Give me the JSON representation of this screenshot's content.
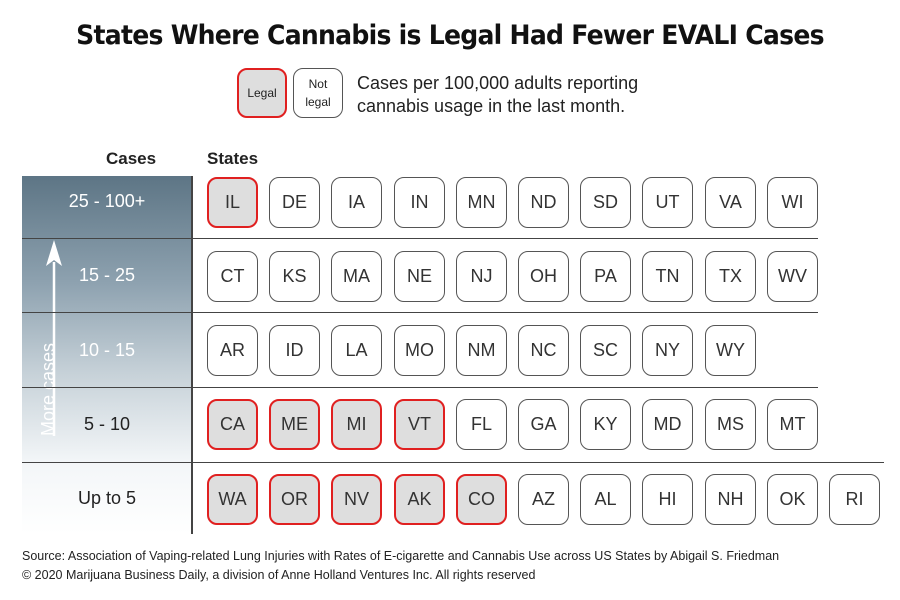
{
  "title": "States Where Cannabis is Legal Had Fewer EVALI Cases",
  "legend": {
    "legal": "Legal",
    "not_legal_1": "Not",
    "not_legal_2": "legal",
    "description_1": "Cases per 100,000 adults reporting",
    "description_2": "cannabis usage in the last month."
  },
  "column_headers": {
    "cases": "Cases",
    "states": "States"
  },
  "axis_label": "More cases",
  "colors": {
    "legal_border": "#e02020",
    "legal_fill": "#dedede",
    "gradient_top": "#5d7585"
  },
  "chart_data": {
    "type": "table",
    "title": "States Where Cannabis is Legal Had Fewer EVALI Cases",
    "rows": [
      {
        "range": "25 - 100+",
        "states": [
          {
            "code": "IL",
            "legal": true
          },
          {
            "code": "DE",
            "legal": false
          },
          {
            "code": "IA",
            "legal": false
          },
          {
            "code": "IN",
            "legal": false
          },
          {
            "code": "MN",
            "legal": false
          },
          {
            "code": "ND",
            "legal": false
          },
          {
            "code": "SD",
            "legal": false
          },
          {
            "code": "UT",
            "legal": false
          },
          {
            "code": "VA",
            "legal": false
          },
          {
            "code": "WI",
            "legal": false
          }
        ]
      },
      {
        "range": "15 - 25",
        "states": [
          {
            "code": "CT",
            "legal": false
          },
          {
            "code": "KS",
            "legal": false
          },
          {
            "code": "MA",
            "legal": false
          },
          {
            "code": "NE",
            "legal": false
          },
          {
            "code": "NJ",
            "legal": false
          },
          {
            "code": "OH",
            "legal": false
          },
          {
            "code": "PA",
            "legal": false
          },
          {
            "code": "TN",
            "legal": false
          },
          {
            "code": "TX",
            "legal": false
          },
          {
            "code": "WV",
            "legal": false
          }
        ]
      },
      {
        "range": "10 - 15",
        "states": [
          {
            "code": "AR",
            "legal": false
          },
          {
            "code": "ID",
            "legal": false
          },
          {
            "code": "LA",
            "legal": false
          },
          {
            "code": "MO",
            "legal": false
          },
          {
            "code": "NM",
            "legal": false
          },
          {
            "code": "NC",
            "legal": false
          },
          {
            "code": "SC",
            "legal": false
          },
          {
            "code": "NY",
            "legal": false
          },
          {
            "code": "WY",
            "legal": false
          }
        ]
      },
      {
        "range": "5 - 10",
        "states": [
          {
            "code": "CA",
            "legal": true
          },
          {
            "code": "ME",
            "legal": true
          },
          {
            "code": "MI",
            "legal": true
          },
          {
            "code": "VT",
            "legal": true
          },
          {
            "code": "FL",
            "legal": false
          },
          {
            "code": "GA",
            "legal": false
          },
          {
            "code": "KY",
            "legal": false
          },
          {
            "code": "MD",
            "legal": false
          },
          {
            "code": "MS",
            "legal": false
          },
          {
            "code": "MT",
            "legal": false
          }
        ]
      },
      {
        "range": "Up to 5",
        "states": [
          {
            "code": "WA",
            "legal": true
          },
          {
            "code": "OR",
            "legal": true
          },
          {
            "code": "NV",
            "legal": true
          },
          {
            "code": "AK",
            "legal": true
          },
          {
            "code": "CO",
            "legal": true
          },
          {
            "code": "AZ",
            "legal": false
          },
          {
            "code": "AL",
            "legal": false
          },
          {
            "code": "HI",
            "legal": false
          },
          {
            "code": "NH",
            "legal": false
          },
          {
            "code": "OK",
            "legal": false
          },
          {
            "code": "RI",
            "legal": false
          }
        ]
      }
    ]
  },
  "source": {
    "line1": "Source:  Association of Vaping-related Lung Injuries with Rates of E-cigarette and Cannabis Use across US States by Abigail S. Friedman",
    "line2": "© 2020 Marijuana Business Daily, a division of Anne Holland Ventures Inc. All rights reserved"
  }
}
